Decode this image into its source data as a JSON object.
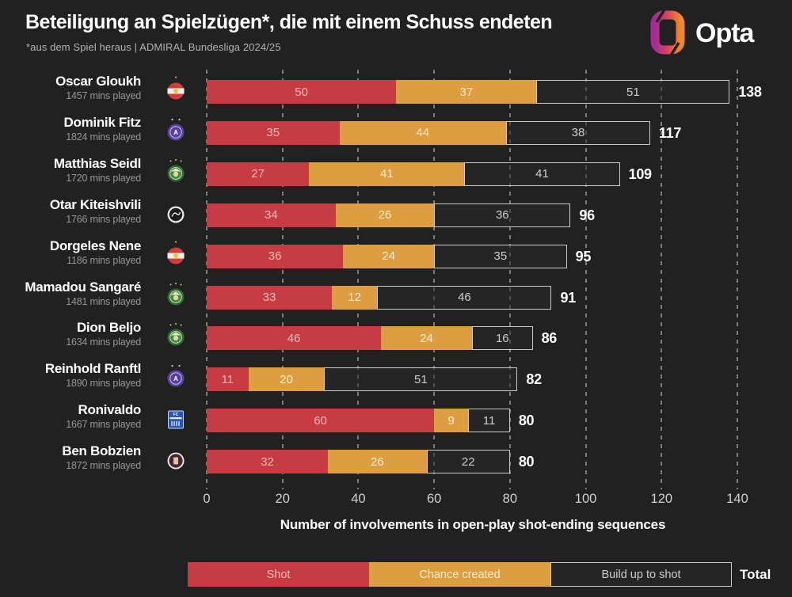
{
  "header": {
    "title": "Beteiligung an Spielzügen*, die mit einem Schuss endeten",
    "subtitle": "*aus dem Spiel heraus | ADMIRAL Bundesliga 2024/25",
    "brand": "Opta"
  },
  "colors": {
    "background": "#212121",
    "shot": "#c63c42",
    "chance_created": "#dd9e41",
    "build_up_outline": "#c9c9c9",
    "gridline": "#9a9a9a",
    "logo_gradient_left": "#a62b95",
    "logo_gradient_right": "#f0872c"
  },
  "legend": {
    "items": [
      {
        "label": "Shot",
        "key": "shot"
      },
      {
        "label": "Chance created",
        "key": "chance_created"
      },
      {
        "label": "Build up to shot",
        "key": "build_up"
      }
    ],
    "total_label": "Total"
  },
  "chart_data": {
    "type": "bar",
    "orientation": "horizontal",
    "stacked": true,
    "xlabel": "Number of involvements in open-play shot-ending sequences",
    "xlim": [
      0,
      140
    ],
    "xticks": [
      0,
      20,
      40,
      60,
      80,
      100,
      120,
      140
    ],
    "grid": "dashed-vertical",
    "legend_position": "bottom",
    "series_names": [
      "Shot",
      "Chance created",
      "Build up to shot"
    ],
    "rows": [
      {
        "player": "Oscar Gloukh",
        "mins_played": "1457 mins played",
        "club": "red-bull-salzburg",
        "values": [
          50,
          37,
          51
        ],
        "total": 138
      },
      {
        "player": "Dominik Fitz",
        "mins_played": "1824 mins played",
        "club": "austria-wien",
        "values": [
          35,
          44,
          38
        ],
        "total": 117
      },
      {
        "player": "Matthias Seidl",
        "mins_played": "1720 mins played",
        "club": "rapid-wien",
        "values": [
          27,
          41,
          41
        ],
        "total": 109
      },
      {
        "player": "Otar Kiteishvili",
        "mins_played": "1766 mins played",
        "club": "sturm-graz",
        "values": [
          34,
          26,
          36
        ],
        "total": 96
      },
      {
        "player": "Dorgeles Nene",
        "mins_played": "1186 mins played",
        "club": "red-bull-salzburg",
        "values": [
          36,
          24,
          35
        ],
        "total": 95
      },
      {
        "player": "Mamadou Sangaré",
        "mins_played": "1481 mins played",
        "club": "rapid-wien",
        "values": [
          33,
          12,
          46
        ],
        "total": 91
      },
      {
        "player": "Dion Beljo",
        "mins_played": "1634 mins played",
        "club": "rapid-wien",
        "values": [
          46,
          24,
          16
        ],
        "total": 86
      },
      {
        "player": "Reinhold Ranftl",
        "mins_played": "1890 mins played",
        "club": "austria-wien",
        "values": [
          11,
          20,
          51
        ],
        "total": 82
      },
      {
        "player": "Ronivaldo",
        "mins_played": "1667 mins played",
        "club": "blau-weiss-linz",
        "values": [
          60,
          9,
          11
        ],
        "total": 80
      },
      {
        "player": "Ben Bobzien",
        "mins_played": "1872 mins played",
        "club": "austria-klagenfurt",
        "values": [
          32,
          26,
          22
        ],
        "total": 80
      }
    ]
  }
}
